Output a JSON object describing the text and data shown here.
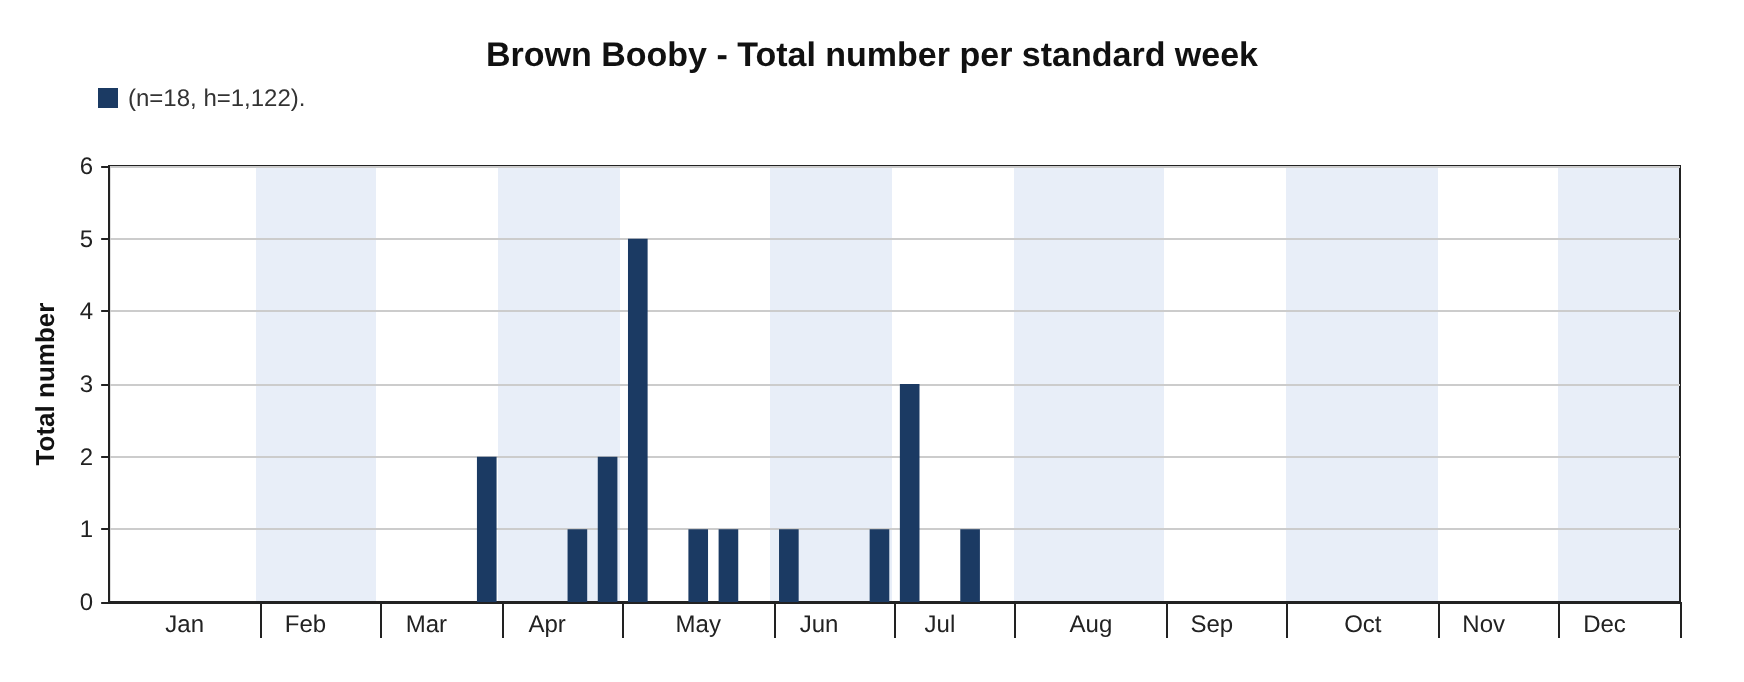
{
  "chart_data": {
    "type": "bar",
    "title": "Brown Booby - Total number per standard week",
    "ylabel": "Total number",
    "categories": [
      null,
      null,
      "Jan",
      null,
      null,
      null,
      "Feb",
      null,
      null,
      null,
      "Mar",
      null,
      null,
      null,
      "Apr",
      null,
      null,
      null,
      null,
      "May",
      null,
      null,
      null,
      "Jun",
      null,
      null,
      null,
      "Jul",
      null,
      null,
      null,
      null,
      "Aug",
      null,
      null,
      null,
      "Sep",
      null,
      null,
      null,
      null,
      "Oct",
      null,
      null,
      null,
      "Nov",
      null,
      null,
      null,
      "Dec",
      null,
      null
    ],
    "series": [
      {
        "name": "(n=18, h=1,122).",
        "color": "#1b3a63",
        "values": [
          null,
          null,
          null,
          null,
          null,
          null,
          null,
          null,
          null,
          null,
          null,
          null,
          2,
          null,
          null,
          1,
          2,
          5,
          null,
          1,
          1,
          null,
          1,
          null,
          null,
          1,
          3,
          null,
          1,
          null,
          null,
          null,
          null,
          null,
          null,
          null,
          null,
          null,
          null,
          null,
          null,
          null,
          null,
          null,
          null,
          null,
          null,
          null,
          null,
          null,
          null,
          null
        ]
      }
    ],
    "ylim": [
      0,
      6
    ],
    "yticks": [
      0,
      1,
      2,
      3,
      4,
      5,
      6
    ],
    "grid": "y",
    "legend": "top left"
  }
}
